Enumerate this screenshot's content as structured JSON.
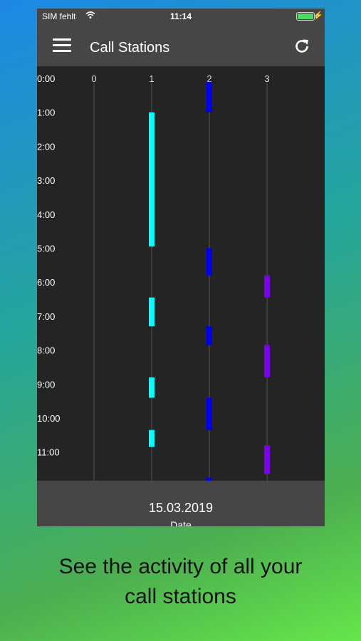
{
  "status": {
    "carrier": "SIM fehlt",
    "time": "11:14",
    "battery_percent": 100,
    "charging_symbol": "⚡"
  },
  "appbar": {
    "title": "Call Stations",
    "menu_icon": "hamburger-menu-icon",
    "refresh_icon": "refresh-icon"
  },
  "chart_data": {
    "type": "timeline",
    "stations": [
      "0",
      "1",
      "2",
      "3"
    ],
    "time_labels": [
      "0:00",
      "1:00",
      "2:00",
      "3:00",
      "4:00",
      "5:00",
      "6:00",
      "7:00",
      "8:00",
      "9:00",
      "10:00",
      "11:00"
    ],
    "ylim_hours": [
      0,
      11.9
    ],
    "series": [
      {
        "station": "0",
        "color": "#00ffff",
        "segments": []
      },
      {
        "station": "1",
        "color": "#00ffff",
        "segments": [
          [
            1.0,
            4.95
          ],
          [
            6.45,
            7.3
          ],
          [
            8.8,
            9.4
          ],
          [
            10.35,
            10.85
          ]
        ]
      },
      {
        "station": "2",
        "color": "#0000ee",
        "segments": [
          [
            0.1,
            1.0
          ],
          [
            5.0,
            5.8
          ],
          [
            7.3,
            7.85
          ],
          [
            9.4,
            10.35
          ],
          [
            11.75,
            11.9
          ]
        ]
      },
      {
        "station": "3",
        "color": "#7a00ee",
        "segments": [
          [
            5.8,
            6.45
          ],
          [
            7.85,
            8.8
          ],
          [
            10.8,
            11.65
          ]
        ]
      }
    ]
  },
  "footer": {
    "date_value": "15.03.2019",
    "date_label": "Date"
  },
  "caption": {
    "line1": "See the activity of all your",
    "line2": "call stations"
  }
}
